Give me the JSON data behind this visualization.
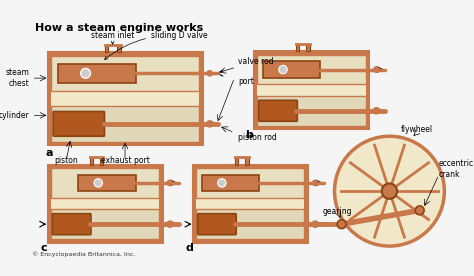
{
  "title": "How a steam engine works",
  "bg_color": "#f5f0e0",
  "outer_color": "#c8784a",
  "inner_color": "#e8d8b0",
  "steam_color": "#f0e8d0",
  "piston_color": "#b05820",
  "rod_color": "#b05820",
  "wall_color": "#c8784a",
  "text_color": "#000000",
  "white_color": "#ffffff",
  "cream_color": "#f0e8c8",
  "credit": "© Encyclopaedia Britannica, Inc.",
  "labels_a": {
    "title_a": "a",
    "steam_inlet": "steam inlet",
    "sliding_d_valve": "sliding D valve",
    "valve_rod": "valve rod",
    "port": "port",
    "steam_chest": "steam\nchest",
    "cylinder": "cylinder",
    "piston": "piston",
    "exhaust_port": "exhaust port",
    "piston_rod": "piston rod"
  },
  "labels_b": {
    "title_b": "b"
  },
  "labels_c": {
    "title_c": "c"
  },
  "labels_d": {
    "title_d": "d",
    "gearing": "gearing",
    "flywheel": "flywheel",
    "eccentric_crank": "eccentric\ncrank"
  }
}
